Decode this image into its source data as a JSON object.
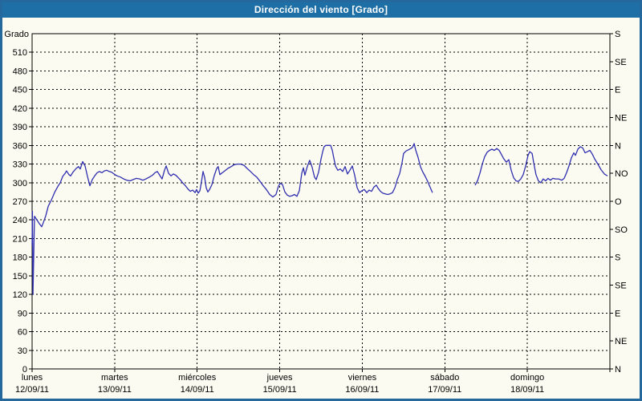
{
  "window": {
    "title": "Dirección del viento [Grado]"
  },
  "colors": {
    "titlebar_bg": "#1d6fa5",
    "titlebar_text": "#ffffff",
    "frame_border": "#24689e",
    "page_bg": "#fcfbf1",
    "grid": "#000000",
    "axis": "#000000",
    "line": "#2f2fb0"
  },
  "chart_data": {
    "type": "line",
    "title": "Dirección del viento [Grado]",
    "ylabel": "Grado",
    "y_left": {
      "min": 0,
      "max": 540,
      "tick_step": 30,
      "tick_max_labeled": 510
    },
    "y_right": {
      "tick_step": 45,
      "labels_bottom_to_top": [
        "N",
        "NE",
        "E",
        "SE",
        "S",
        "SO",
        "O",
        "NO",
        "N",
        "NE",
        "E",
        "SE",
        "S"
      ]
    },
    "x_axis": {
      "hours_total": 168,
      "day_step_hours": 24,
      "days": [
        {
          "name": "lunes",
          "date": "12/09/11"
        },
        {
          "name": "martes",
          "date": "13/09/11"
        },
        {
          "name": "miércoles",
          "date": "14/09/11"
        },
        {
          "name": "jueves",
          "date": "15/09/11"
        },
        {
          "name": "viernes",
          "date": "16/09/11"
        },
        {
          "name": "sábado",
          "date": "17/09/11"
        },
        {
          "name": "domingo",
          "date": "18/09/11"
        }
      ]
    },
    "grid": {
      "style": "dashed",
      "h_step_deg": 30,
      "v_step_hours": 24
    },
    "legend": {
      "visible": false
    },
    "series": [
      {
        "name": "Dirección del viento",
        "unit": "Grado",
        "color": "#2f2fb0",
        "segments": [
          [
            [
              0,
              200
            ],
            [
              0.1,
              254
            ],
            [
              0.25,
              120
            ],
            [
              0.7,
              246
            ],
            [
              1.4,
              240
            ],
            [
              2.1,
              234
            ],
            [
              2.8,
              229
            ],
            [
              3.3,
              236
            ],
            [
              4,
              247
            ],
            [
              4.7,
              262
            ],
            [
              5.6,
              272
            ],
            [
              6.5,
              284
            ],
            [
              7.5,
              294
            ],
            [
              8.2,
              300
            ],
            [
              8.9,
              310
            ],
            [
              9.6,
              315
            ],
            [
              10,
              319
            ],
            [
              10.7,
              313
            ],
            [
              11.2,
              311
            ],
            [
              11.9,
              317
            ],
            [
              12.8,
              323
            ],
            [
              13.5,
              326
            ],
            [
              14,
              322
            ],
            [
              14.7,
              334
            ],
            [
              15.4,
              327
            ],
            [
              16.1,
              310
            ],
            [
              16.8,
              295
            ],
            [
              17.5,
              305
            ],
            [
              18.2,
              311
            ],
            [
              18.9,
              316
            ],
            [
              19.6,
              318
            ],
            [
              20.3,
              316
            ],
            [
              21,
              319
            ],
            [
              21.7,
              320
            ],
            [
              22.4,
              318
            ],
            [
              23.1,
              317
            ],
            [
              23.8,
              314
            ],
            [
              24.7,
              311
            ],
            [
              25.7,
              309
            ],
            [
              26.6,
              306
            ],
            [
              27.5,
              304
            ],
            [
              28.5,
              303
            ],
            [
              29.4,
              305
            ],
            [
              30.3,
              307
            ],
            [
              31.3,
              306
            ],
            [
              32.2,
              304
            ],
            [
              33.1,
              306
            ],
            [
              34.1,
              309
            ],
            [
              35,
              312
            ],
            [
              35.7,
              316
            ],
            [
              36.4,
              318
            ],
            [
              37.1,
              312
            ],
            [
              37.8,
              306
            ],
            [
              38.5,
              320
            ],
            [
              39,
              327
            ],
            [
              39.7,
              315
            ],
            [
              40.4,
              311
            ],
            [
              41.1,
              314
            ],
            [
              41.8,
              312
            ],
            [
              42.5,
              308
            ],
            [
              43.2,
              304
            ],
            [
              43.9,
              299
            ],
            [
              44.6,
              295
            ],
            [
              45.3,
              290
            ],
            [
              46,
              286
            ],
            [
              46.7,
              288
            ],
            [
              47.4,
              284
            ],
            [
              47.8,
              289
            ],
            [
              48.3,
              283
            ],
            [
              48.8,
              287
            ],
            [
              49.2,
              300
            ],
            [
              49.7,
              318
            ],
            [
              50.2,
              308
            ],
            [
              50.6,
              292
            ],
            [
              51.1,
              285
            ],
            [
              51.6,
              289
            ],
            [
              52.3,
              297
            ],
            [
              53,
              312
            ],
            [
              53.7,
              323
            ],
            [
              54.1,
              326
            ],
            [
              54.6,
              313
            ],
            [
              55.3,
              316
            ],
            [
              56,
              319
            ],
            [
              56.9,
              323
            ],
            [
              57.9,
              326
            ],
            [
              58.8,
              329
            ],
            [
              59.7,
              330
            ],
            [
              60.7,
              330
            ],
            [
              61.6,
              328
            ],
            [
              62.5,
              323
            ],
            [
              63.5,
              318
            ],
            [
              64.4,
              313
            ],
            [
              65.3,
              309
            ],
            [
              66.3,
              302
            ],
            [
              67.2,
              295
            ],
            [
              68.1,
              289
            ],
            [
              69.1,
              281
            ],
            [
              70,
              277
            ],
            [
              70.9,
              281
            ],
            [
              71.6,
              294
            ],
            [
              72.1,
              299
            ],
            [
              72.8,
              297
            ],
            [
              73.5,
              285
            ],
            [
              74.2,
              280
            ],
            [
              74.9,
              278
            ],
            [
              75.6,
              279
            ],
            [
              76.3,
              281
            ],
            [
              77,
              278
            ],
            [
              77.7,
              287
            ],
            [
              78.4,
              315
            ],
            [
              78.9,
              324
            ],
            [
              79.3,
              312
            ],
            [
              80,
              326
            ],
            [
              80.7,
              336
            ],
            [
              81.4,
              325
            ],
            [
              82.1,
              309
            ],
            [
              82.6,
              305
            ],
            [
              83.3,
              317
            ],
            [
              84,
              338
            ],
            [
              84.5,
              350
            ],
            [
              84.9,
              358
            ],
            [
              85.4,
              360
            ],
            [
              86.8,
              360
            ],
            [
              87.3,
              352
            ],
            [
              87.7,
              340
            ],
            [
              88.2,
              327
            ],
            [
              88.9,
              320
            ],
            [
              89.6,
              322
            ],
            [
              90.3,
              318
            ],
            [
              91,
              326
            ],
            [
              91.7,
              314
            ],
            [
              92.4,
              320
            ],
            [
              93.1,
              327
            ],
            [
              93.8,
              312
            ],
            [
              94.5,
              292
            ],
            [
              95.2,
              284
            ],
            [
              95.9,
              287
            ],
            [
              96.6,
              289
            ],
            [
              97.3,
              284
            ],
            [
              98,
              288
            ],
            [
              98.7,
              286
            ],
            [
              99.4,
              293
            ],
            [
              100.1,
              296
            ],
            [
              100.6,
              291
            ],
            [
              101.3,
              286
            ],
            [
              102,
              283
            ],
            [
              102.7,
              282
            ],
            [
              103.4,
              281
            ],
            [
              104.1,
              282
            ],
            [
              104.8,
              284
            ],
            [
              105.5,
              292
            ],
            [
              106.2,
              305
            ],
            [
              106.9,
              315
            ],
            [
              107.6,
              333
            ],
            [
              108,
              347
            ],
            [
              108.7,
              351
            ],
            [
              109.4,
              353
            ],
            [
              110.1,
              355
            ],
            [
              110.6,
              357
            ],
            [
              111.1,
              363
            ],
            [
              111.5,
              353
            ],
            [
              112.2,
              341
            ],
            [
              112.9,
              326
            ],
            [
              113.6,
              317
            ],
            [
              114.3,
              310
            ],
            [
              115,
              302
            ],
            [
              115.7,
              293
            ],
            [
              116.4,
              284
            ]
          ],
          [
            [
              128.8,
              296
            ],
            [
              129.5,
              303
            ],
            [
              130.2,
              315
            ],
            [
              130.9,
              330
            ],
            [
              131.6,
              342
            ],
            [
              132.3,
              349
            ],
            [
              133,
              352
            ],
            [
              133.7,
              354
            ],
            [
              134.4,
              352
            ],
            [
              135.1,
              355
            ],
            [
              135.8,
              352
            ],
            [
              136.5,
              345
            ],
            [
              137.2,
              338
            ],
            [
              137.9,
              333
            ],
            [
              138.6,
              337
            ],
            [
              139.3,
              320
            ],
            [
              140,
              308
            ],
            [
              140.7,
              303
            ],
            [
              141.4,
              302
            ],
            [
              142.1,
              306
            ],
            [
              142.8,
              313
            ],
            [
              143.5,
              327
            ],
            [
              144.2,
              344
            ],
            [
              144.7,
              350
            ],
            [
              145.4,
              347
            ],
            [
              145.8,
              333
            ],
            [
              146.5,
              313
            ],
            [
              147.2,
              303
            ],
            [
              147.9,
              300
            ],
            [
              148.6,
              306
            ],
            [
              149.3,
              303
            ],
            [
              150,
              307
            ],
            [
              150.7,
              304
            ],
            [
              151.4,
              307
            ],
            [
              152.1,
              306
            ],
            [
              153.1,
              306
            ],
            [
              154,
              304
            ],
            [
              154.7,
              307
            ],
            [
              155.4,
              316
            ],
            [
              156.1,
              327
            ],
            [
              156.8,
              340
            ],
            [
              157.5,
              348
            ],
            [
              158,
              344
            ],
            [
              158.7,
              354
            ],
            [
              159.4,
              358
            ],
            [
              160.1,
              356
            ],
            [
              160.8,
              348
            ],
            [
              161.5,
              350
            ],
            [
              162.2,
              352
            ],
            [
              162.9,
              346
            ],
            [
              163.6,
              338
            ],
            [
              164.5,
              330
            ],
            [
              165.4,
              321
            ],
            [
              166.4,
              314
            ],
            [
              167.3,
              311
            ]
          ]
        ]
      }
    ]
  }
}
